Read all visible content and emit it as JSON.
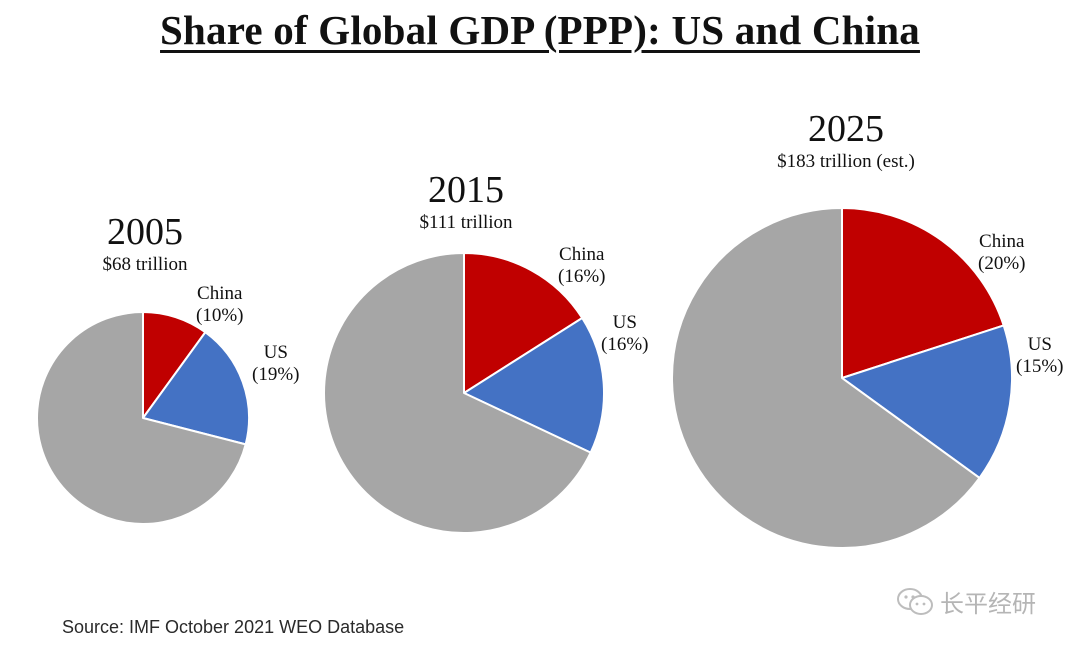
{
  "chart_data": {
    "type": "pie",
    "title": "Share of Global GDP (PPP): US and China",
    "source": "Source: IMF October 2021 WEO Database",
    "watermark": "长平经研",
    "colors": {
      "China": "#c00000",
      "US": "#4472c4",
      "Rest": "#a6a6a6"
    },
    "pies": [
      {
        "year": "2005",
        "total": "$68 trillion",
        "slices": [
          {
            "name": "China",
            "value": 10,
            "label": "(10%)"
          },
          {
            "name": "US",
            "value": 19,
            "label": "(19%)"
          },
          {
            "name": "Rest",
            "value": 71,
            "label": ""
          }
        ]
      },
      {
        "year": "2015",
        "total": "$111 trillion",
        "slices": [
          {
            "name": "China",
            "value": 16,
            "label": "(16%)"
          },
          {
            "name": "US",
            "value": 16,
            "label": "(16%)"
          },
          {
            "name": "Rest",
            "value": 68,
            "label": ""
          }
        ]
      },
      {
        "year": "2025",
        "total": "$183 trillion (est.)",
        "slices": [
          {
            "name": "China",
            "value": 20,
            "label": "(20%)"
          },
          {
            "name": "US",
            "value": 15,
            "label": "(15%)"
          },
          {
            "name": "Rest",
            "value": 65,
            "label": ""
          }
        ]
      }
    ]
  }
}
